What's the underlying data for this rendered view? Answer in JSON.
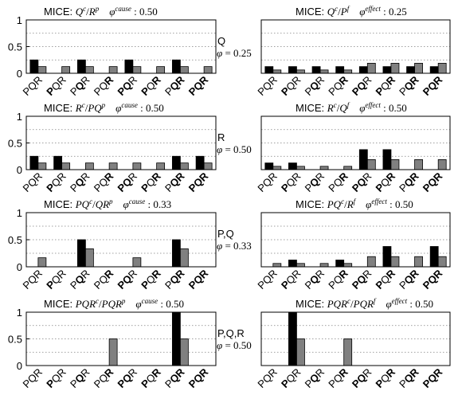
{
  "x_categories": [
    {
      "letters": [
        "P",
        "Q",
        "R"
      ],
      "bold": [
        false,
        false,
        false
      ]
    },
    {
      "letters": [
        "P",
        "Q",
        "R"
      ],
      "bold": [
        true,
        false,
        false
      ]
    },
    {
      "letters": [
        "P",
        "Q",
        "R"
      ],
      "bold": [
        false,
        true,
        false
      ]
    },
    {
      "letters": [
        "P",
        "Q",
        "R"
      ],
      "bold": [
        false,
        false,
        true
      ]
    },
    {
      "letters": [
        "P",
        "Q",
        "R"
      ],
      "bold": [
        true,
        true,
        false
      ]
    },
    {
      "letters": [
        "P",
        "Q",
        "R"
      ],
      "bold": [
        true,
        false,
        true
      ]
    },
    {
      "letters": [
        "P",
        "Q",
        "R"
      ],
      "bold": [
        false,
        true,
        true
      ]
    },
    {
      "letters": [
        "P",
        "Q",
        "R"
      ],
      "bold": [
        true,
        true,
        true
      ]
    }
  ],
  "y_ticks": [
    "1",
    "0.5",
    "0"
  ],
  "rows": [
    {
      "label": "Q",
      "phi_text": "φ = 0.25"
    },
    {
      "label": "R",
      "phi_text": "φ = 0.50"
    },
    {
      "label": "P,Q",
      "phi_text": "φ = 0.33"
    },
    {
      "label": "P,Q,R",
      "phi_text": "φ = 0.50"
    }
  ],
  "titles": [
    {
      "prefix": "MICE:",
      "num": "Q",
      "num_sup": "c",
      "den": "R",
      "den_sup": "p",
      "phi_sup": "cause",
      "value": ": 0.50"
    },
    {
      "prefix": "MICE:",
      "num": "Q",
      "num_sup": "c",
      "den": "P",
      "den_sup": "f",
      "phi_sup": "effect",
      "value": ": 0.25"
    },
    {
      "prefix": "MICE:",
      "num": "R",
      "num_sup": "c",
      "den": "PQ",
      "den_sup": "p",
      "phi_sup": "cause",
      "value": ": 0.50"
    },
    {
      "prefix": "MICE:",
      "num": "R",
      "num_sup": "c",
      "den": "Q",
      "den_sup": "f",
      "phi_sup": "effect",
      "value": ": 0.50"
    },
    {
      "prefix": "MICE:",
      "num": "PQ",
      "num_sup": "c",
      "den": "QR",
      "den_sup": "p",
      "phi_sup": "cause",
      "value": ": 0.33"
    },
    {
      "prefix": "MICE:",
      "num": "PQ",
      "num_sup": "c",
      "den": "R",
      "den_sup": "f",
      "phi_sup": "effect",
      "value": ": 0.50"
    },
    {
      "prefix": "MICE:",
      "num": "PQR",
      "num_sup": "c",
      "den": "PQR",
      "den_sup": "p",
      "phi_sup": "cause",
      "value": ": 0.50"
    },
    {
      "prefix": "MICE:",
      "num": "PQR",
      "num_sup": "c",
      "den": "PQR",
      "den_sup": "f",
      "phi_sup": "effect",
      "value": ": 0.50"
    }
  ],
  "colors": {
    "series_a": "#000000",
    "series_b": "#808080",
    "grid": "#808080"
  },
  "chart_data": [
    {
      "type": "bar",
      "ylim": [
        0,
        1
      ],
      "grid": true,
      "series": [
        {
          "values": [
            0.25,
            0,
            0.25,
            0,
            0.25,
            0,
            0.25,
            0
          ]
        },
        {
          "values": [
            0.125,
            0.125,
            0.125,
            0.125,
            0.125,
            0.125,
            0.125,
            0.125
          ]
        }
      ]
    },
    {
      "type": "bar",
      "ylim": [
        0,
        1
      ],
      "grid": true,
      "series": [
        {
          "values": [
            0.125,
            0.125,
            0.125,
            0.125,
            0.125,
            0.125,
            0.125,
            0.125
          ]
        },
        {
          "values": [
            0.062,
            0.062,
            0.062,
            0.062,
            0.188,
            0.188,
            0.188,
            0.188
          ]
        }
      ]
    },
    {
      "type": "bar",
      "ylim": [
        0,
        1
      ],
      "grid": true,
      "series": [
        {
          "values": [
            0.25,
            0.25,
            0,
            0,
            0,
            0,
            0.25,
            0.25
          ]
        },
        {
          "values": [
            0.125,
            0.125,
            0.125,
            0.125,
            0.125,
            0.125,
            0.125,
            0.125
          ]
        }
      ]
    },
    {
      "type": "bar",
      "ylim": [
        0,
        1
      ],
      "grid": true,
      "series": [
        {
          "values": [
            0.125,
            0.125,
            0,
            0,
            0.375,
            0.375,
            0,
            0
          ]
        },
        {
          "values": [
            0.062,
            0.062,
            0.062,
            0.062,
            0.188,
            0.188,
            0.188,
            0.188
          ]
        }
      ]
    },
    {
      "type": "bar",
      "ylim": [
        0,
        1
      ],
      "grid": true,
      "series": [
        {
          "values": [
            0,
            0,
            0.5,
            0,
            0,
            0,
            0.5,
            0
          ]
        },
        {
          "values": [
            0.167,
            0,
            0.333,
            0,
            0.167,
            0,
            0.333,
            0
          ]
        }
      ]
    },
    {
      "type": "bar",
      "ylim": [
        0,
        1
      ],
      "grid": true,
      "series": [
        {
          "values": [
            0,
            0.125,
            0,
            0.125,
            0,
            0.375,
            0,
            0.375
          ]
        },
        {
          "values": [
            0.062,
            0.062,
            0.062,
            0.062,
            0.188,
            0.188,
            0.188,
            0.188
          ]
        }
      ]
    },
    {
      "type": "bar",
      "ylim": [
        0,
        1
      ],
      "grid": true,
      "series": [
        {
          "values": [
            0,
            0,
            0,
            0,
            0,
            0,
            1,
            0
          ]
        },
        {
          "values": [
            0,
            0,
            0,
            0.5,
            0,
            0,
            0.5,
            0
          ]
        }
      ]
    },
    {
      "type": "bar",
      "ylim": [
        0,
        1
      ],
      "grid": true,
      "series": [
        {
          "values": [
            0,
            1,
            0,
            0,
            0,
            0,
            0,
            0
          ]
        },
        {
          "values": [
            0,
            0.5,
            0,
            0.5,
            0,
            0,
            0,
            0
          ]
        }
      ]
    }
  ]
}
